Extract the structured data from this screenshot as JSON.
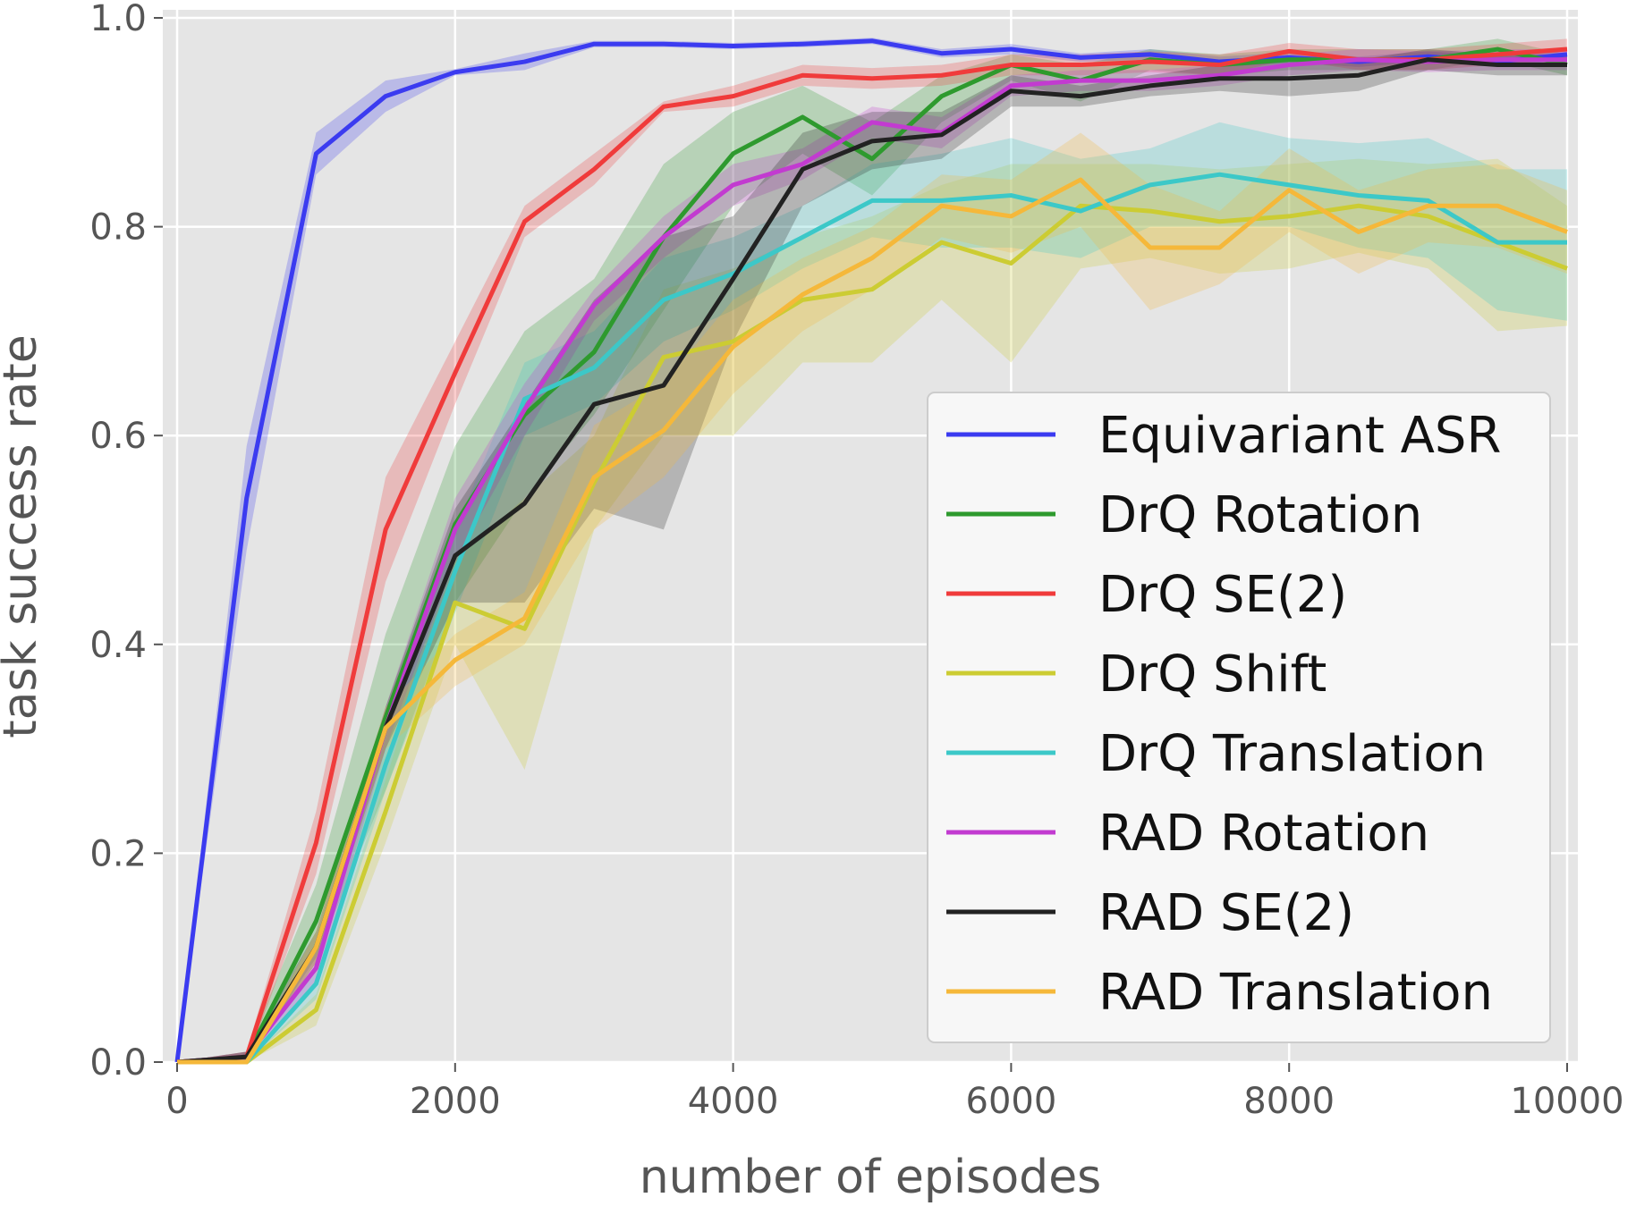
{
  "chart_data": {
    "type": "line",
    "title": "",
    "xlabel": "number of episodes",
    "ylabel": "task success rate",
    "xlim": [
      0,
      10000
    ],
    "ylim": [
      0.0,
      1.0
    ],
    "xticks": [
      0,
      2000,
      4000,
      6000,
      8000,
      10000
    ],
    "xtick_labels": [
      "0",
      "2000",
      "4000",
      "6000",
      "8000",
      "10000"
    ],
    "yticks": [
      0.0,
      0.2,
      0.4,
      0.6,
      0.8,
      1.0
    ],
    "ytick_labels": [
      "0.0",
      "0.2",
      "0.4",
      "0.6",
      "0.8",
      "1.0"
    ],
    "grid": true,
    "legend_position": "center-right",
    "x": [
      0,
      500,
      1000,
      1500,
      2000,
      2500,
      3000,
      3500,
      4000,
      4500,
      5000,
      5500,
      6000,
      6500,
      7000,
      7500,
      8000,
      8500,
      9000,
      9500,
      10000
    ],
    "series": [
      {
        "name": "Equivariant ASR",
        "color": "#3b3bf0",
        "values": [
          0.0,
          0.54,
          0.87,
          0.925,
          0.948,
          0.958,
          0.975,
          0.975,
          0.973,
          0.975,
          0.978,
          0.966,
          0.97,
          0.962,
          0.965,
          0.958,
          0.962,
          0.958,
          0.963,
          0.958,
          0.965
        ],
        "lower": [
          0.0,
          0.49,
          0.85,
          0.91,
          0.945,
          0.95,
          0.972,
          0.972,
          0.97,
          0.972,
          0.975,
          0.962,
          0.965,
          0.958,
          0.96,
          0.953,
          0.957,
          0.953,
          0.958,
          0.953,
          0.96
        ],
        "upper": [
          0.0,
          0.59,
          0.89,
          0.94,
          0.951,
          0.966,
          0.978,
          0.978,
          0.976,
          0.978,
          0.981,
          0.97,
          0.975,
          0.966,
          0.97,
          0.963,
          0.967,
          0.963,
          0.968,
          0.963,
          0.97
        ]
      },
      {
        "name": "DrQ Rotation",
        "color": "#2e9a2e",
        "values": [
          0.0,
          0.005,
          0.135,
          0.33,
          0.515,
          0.62,
          0.68,
          0.79,
          0.87,
          0.905,
          0.865,
          0.925,
          0.955,
          0.94,
          0.96,
          0.955,
          0.96,
          0.96,
          0.96,
          0.97,
          0.955
        ],
        "lower": [
          0.0,
          0.0,
          0.1,
          0.26,
          0.44,
          0.54,
          0.62,
          0.72,
          0.82,
          0.87,
          0.83,
          0.9,
          0.94,
          0.92,
          0.95,
          0.945,
          0.95,
          0.95,
          0.95,
          0.96,
          0.945
        ],
        "upper": [
          0.0,
          0.01,
          0.17,
          0.41,
          0.59,
          0.7,
          0.75,
          0.86,
          0.91,
          0.935,
          0.9,
          0.945,
          0.965,
          0.955,
          0.97,
          0.965,
          0.97,
          0.97,
          0.97,
          0.98,
          0.965
        ]
      },
      {
        "name": "DrQ SE(2)",
        "color": "#f03b3b",
        "values": [
          0.0,
          0.005,
          0.21,
          0.51,
          0.66,
          0.805,
          0.855,
          0.915,
          0.925,
          0.945,
          0.942,
          0.945,
          0.955,
          0.955,
          0.958,
          0.955,
          0.968,
          0.96,
          0.96,
          0.965,
          0.97
        ],
        "lower": [
          0.0,
          0.0,
          0.18,
          0.46,
          0.63,
          0.79,
          0.84,
          0.91,
          0.915,
          0.935,
          0.932,
          0.935,
          0.945,
          0.945,
          0.948,
          0.945,
          0.96,
          0.95,
          0.95,
          0.955,
          0.96
        ],
        "upper": [
          0.0,
          0.01,
          0.24,
          0.56,
          0.69,
          0.82,
          0.87,
          0.92,
          0.935,
          0.955,
          0.952,
          0.955,
          0.965,
          0.965,
          0.968,
          0.965,
          0.976,
          0.97,
          0.97,
          0.975,
          0.98
        ]
      },
      {
        "name": "DrQ Shift",
        "color": "#cccc33",
        "values": [
          0.0,
          0.0,
          0.05,
          0.24,
          0.44,
          0.415,
          0.555,
          0.675,
          0.69,
          0.73,
          0.74,
          0.785,
          0.765,
          0.82,
          0.815,
          0.805,
          0.81,
          0.82,
          0.81,
          0.785,
          0.76
        ],
        "lower": [
          0.0,
          0.0,
          0.035,
          0.21,
          0.4,
          0.28,
          0.51,
          0.6,
          0.6,
          0.67,
          0.67,
          0.73,
          0.67,
          0.76,
          0.77,
          0.755,
          0.76,
          0.775,
          0.76,
          0.7,
          0.705
        ],
        "upper": [
          0.0,
          0.0,
          0.065,
          0.27,
          0.48,
          0.54,
          0.6,
          0.74,
          0.76,
          0.79,
          0.81,
          0.84,
          0.86,
          0.86,
          0.86,
          0.855,
          0.86,
          0.865,
          0.86,
          0.865,
          0.82
        ]
      },
      {
        "name": "DrQ Translation",
        "color": "#3cc8c8",
        "values": [
          0.0,
          0.0,
          0.075,
          0.285,
          0.47,
          0.635,
          0.665,
          0.73,
          0.755,
          0.79,
          0.825,
          0.825,
          0.83,
          0.815,
          0.84,
          0.85,
          0.84,
          0.83,
          0.825,
          0.785,
          0.785
        ],
        "lower": [
          0.0,
          0.0,
          0.06,
          0.26,
          0.43,
          0.6,
          0.63,
          0.69,
          0.72,
          0.76,
          0.79,
          0.78,
          0.78,
          0.77,
          0.8,
          0.8,
          0.8,
          0.78,
          0.77,
          0.72,
          0.71
        ],
        "upper": [
          0.0,
          0.0,
          0.09,
          0.31,
          0.51,
          0.67,
          0.7,
          0.77,
          0.79,
          0.82,
          0.86,
          0.87,
          0.885,
          0.865,
          0.875,
          0.9,
          0.885,
          0.88,
          0.885,
          0.855,
          0.855
        ]
      },
      {
        "name": "RAD Rotation",
        "color": "#c23bd0",
        "values": [
          0.0,
          0.005,
          0.09,
          0.32,
          0.51,
          0.625,
          0.725,
          0.79,
          0.84,
          0.86,
          0.9,
          0.89,
          0.935,
          0.94,
          0.94,
          0.945,
          0.955,
          0.96,
          0.958,
          0.96,
          0.96
        ],
        "lower": [
          0.0,
          0.0,
          0.075,
          0.3,
          0.48,
          0.6,
          0.71,
          0.77,
          0.82,
          0.845,
          0.885,
          0.875,
          0.925,
          0.93,
          0.93,
          0.935,
          0.945,
          0.95,
          0.948,
          0.95,
          0.95
        ],
        "upper": [
          0.0,
          0.01,
          0.105,
          0.34,
          0.54,
          0.65,
          0.74,
          0.81,
          0.86,
          0.875,
          0.915,
          0.905,
          0.945,
          0.95,
          0.95,
          0.955,
          0.965,
          0.97,
          0.968,
          0.97,
          0.97
        ]
      },
      {
        "name": "RAD SE(2)",
        "color": "#222222",
        "values": [
          0.0,
          0.005,
          0.11,
          0.32,
          0.485,
          0.535,
          0.63,
          0.648,
          0.75,
          0.855,
          0.882,
          0.888,
          0.93,
          0.925,
          0.935,
          0.942,
          0.942,
          0.945,
          0.96,
          0.955,
          0.955
        ],
        "lower": [
          0.0,
          0.0,
          0.095,
          0.3,
          0.44,
          0.44,
          0.53,
          0.51,
          0.69,
          0.82,
          0.855,
          0.865,
          0.915,
          0.915,
          0.925,
          0.93,
          0.925,
          0.93,
          0.95,
          0.945,
          0.945
        ],
        "upper": [
          0.0,
          0.01,
          0.125,
          0.34,
          0.53,
          0.63,
          0.73,
          0.79,
          0.81,
          0.89,
          0.91,
          0.91,
          0.945,
          0.935,
          0.945,
          0.955,
          0.96,
          0.96,
          0.97,
          0.965,
          0.965
        ]
      },
      {
        "name": "RAD Translation",
        "color": "#f5b83a",
        "values": [
          0.0,
          0.0,
          0.11,
          0.32,
          0.385,
          0.425,
          0.56,
          0.605,
          0.685,
          0.735,
          0.77,
          0.82,
          0.81,
          0.845,
          0.78,
          0.78,
          0.835,
          0.795,
          0.82,
          0.82,
          0.795
        ],
        "lower": [
          0.0,
          0.0,
          0.095,
          0.3,
          0.36,
          0.4,
          0.51,
          0.56,
          0.64,
          0.7,
          0.74,
          0.79,
          0.775,
          0.8,
          0.72,
          0.745,
          0.795,
          0.755,
          0.785,
          0.78,
          0.755
        ],
        "upper": [
          0.0,
          0.0,
          0.125,
          0.34,
          0.41,
          0.45,
          0.61,
          0.65,
          0.73,
          0.77,
          0.8,
          0.85,
          0.845,
          0.89,
          0.84,
          0.815,
          0.875,
          0.835,
          0.855,
          0.86,
          0.835
        ]
      }
    ]
  }
}
